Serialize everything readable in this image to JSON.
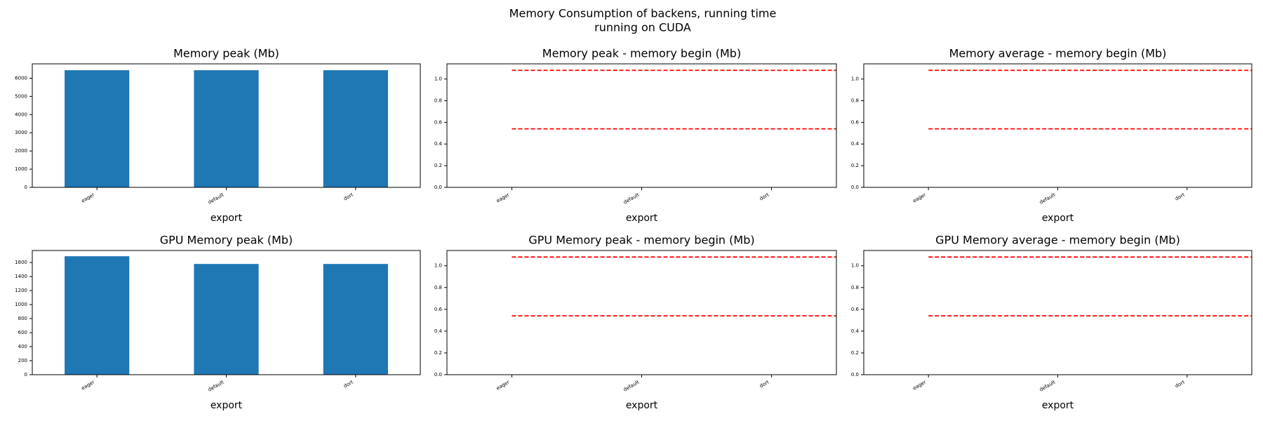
{
  "title_lines": [
    "Memory Consumption of backens, running time",
    "running on CUDA"
  ],
  "chart_data": [
    {
      "type": "bar",
      "title": "Memory peak (Mb)",
      "xlabel": "export",
      "categories": [
        "eager",
        "default",
        "dort"
      ],
      "values": [
        6440,
        6440,
        6440
      ],
      "color": "#1f77b4",
      "ylim": [
        0,
        6790
      ],
      "yticks": [
        0,
        1000,
        2000,
        3000,
        4000,
        5000,
        6000
      ]
    },
    {
      "type": "bar",
      "title": "Memory peak - memory begin (Mb)",
      "xlabel": "export",
      "categories": [
        "eager",
        "default",
        "dort"
      ],
      "values": [
        0,
        0,
        0
      ],
      "color": "#1f77b4",
      "ylim": [
        0,
        1.14
      ],
      "yticks": [
        {
          "value": 0,
          "label": "0.0"
        },
        0.2,
        0.4,
        0.6,
        0.8,
        {
          "value": 1,
          "label": "1.0"
        }
      ],
      "reference_lines": [
        0.54,
        1.08
      ],
      "reference_color": "#ff0000"
    },
    {
      "type": "bar",
      "title": "Memory average - memory begin (Mb)",
      "xlabel": "export",
      "categories": [
        "eager",
        "default",
        "dort"
      ],
      "values": [
        0,
        0,
        0
      ],
      "color": "#1f77b4",
      "ylim": [
        0,
        1.14
      ],
      "yticks": [
        {
          "value": 0,
          "label": "0.0"
        },
        0.2,
        0.4,
        0.6,
        0.8,
        {
          "value": 1,
          "label": "1.0"
        }
      ],
      "reference_lines": [
        0.54,
        1.08
      ],
      "reference_color": "#ff0000"
    },
    {
      "type": "bar",
      "title": "GPU Memory peak (Mb)",
      "xlabel": "export",
      "categories": [
        "eager",
        "default",
        "dort"
      ],
      "values": [
        1690,
        1580,
        1580
      ],
      "color": "#1f77b4",
      "ylim": [
        0,
        1772
      ],
      "yticks": [
        0,
        200,
        400,
        600,
        800,
        1000,
        1200,
        1400,
        1600
      ]
    },
    {
      "type": "bar",
      "title": "GPU Memory peak - memory begin (Mb)",
      "xlabel": "export",
      "categories": [
        "eager",
        "default",
        "dort"
      ],
      "values": [
        0,
        0,
        0
      ],
      "color": "#1f77b4",
      "ylim": [
        0,
        1.14
      ],
      "yticks": [
        {
          "value": 0,
          "label": "0.0"
        },
        0.2,
        0.4,
        0.6,
        0.8,
        {
          "value": 1,
          "label": "1.0"
        }
      ],
      "reference_lines": [
        0.54,
        1.08
      ],
      "reference_color": "#ff0000"
    },
    {
      "type": "bar",
      "title": "GPU Memory average - memory begin (Mb)",
      "xlabel": "export",
      "categories": [
        "eager",
        "default",
        "dort"
      ],
      "values": [
        0,
        0,
        0
      ],
      "color": "#1f77b4",
      "ylim": [
        0,
        1.14
      ],
      "yticks": [
        {
          "value": 0,
          "label": "0.0"
        },
        0.2,
        0.4,
        0.6,
        0.8,
        {
          "value": 1,
          "label": "1.0"
        }
      ],
      "reference_lines": [
        0.54,
        1.08
      ],
      "reference_color": "#ff0000"
    }
  ]
}
